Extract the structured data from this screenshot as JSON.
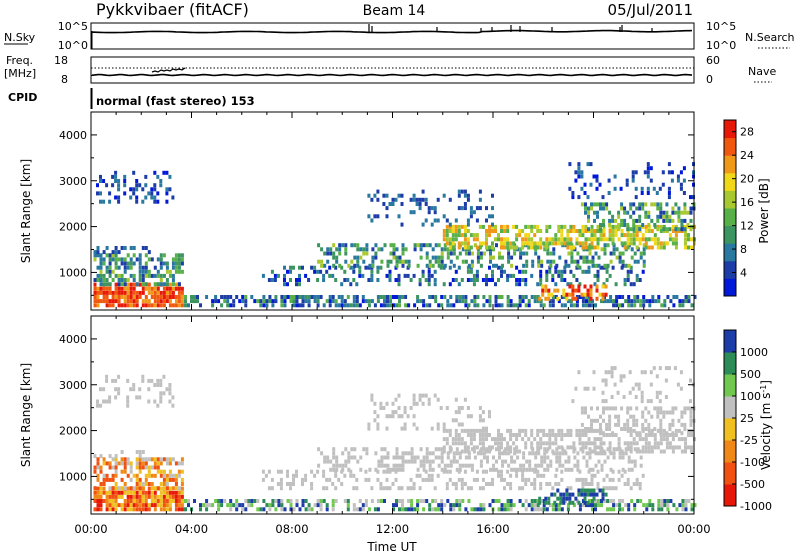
{
  "header": {
    "station": "Pykkvibaer (fitACF)",
    "beam": "Beam 14",
    "date": "05/Jul/2011"
  },
  "noise_panel": {
    "left_label": "N.Sky",
    "right_label": "N.Search",
    "left_ticks": [
      "10^5",
      "10^0"
    ],
    "right_ticks": [
      "10^5",
      "10^0"
    ]
  },
  "freq_panel": {
    "left_label_line1": "Freq.",
    "left_label_line2": "[MHz]",
    "right_label": "Nave",
    "left_ticks": [
      "18",
      "8"
    ],
    "right_ticks": [
      "60",
      "0"
    ]
  },
  "cpid": {
    "label": "CPID",
    "text": "normal (fast stereo) 153"
  },
  "chart_data": [
    {
      "type": "heatmap",
      "name": "Power",
      "ylabel": "Slant Range [km]",
      "y_ticks": [
        1000,
        2000,
        3000,
        4000
      ],
      "ylim": [
        180,
        4500
      ],
      "colorbar_label": "Power [dB]",
      "colorbar_ticks": [
        4,
        8,
        12,
        16,
        20,
        24,
        28
      ],
      "colorbar_range": [
        0,
        30
      ],
      "colorscale": [
        "#0018d8",
        "#1c3ca8",
        "#2878a0",
        "#3c9460",
        "#58b048",
        "#a8c830",
        "#f0d818",
        "#f09818",
        "#f05810",
        "#e81808"
      ]
    },
    {
      "type": "heatmap",
      "name": "Velocity",
      "ylabel": "Slant Range [km]",
      "y_ticks": [
        1000,
        2000,
        3000,
        4000
      ],
      "ylim": [
        180,
        4500
      ],
      "colorbar_label": "Velocity [m s-1]",
      "colorbar_ticks": [
        "1000",
        "500",
        "100",
        "25",
        "-25",
        "-100",
        "-500",
        "-1000"
      ],
      "colorscale": [
        "#e81808",
        "#f05010",
        "#f08818",
        "#f0c020",
        "#c0c0c0",
        "#70c850",
        "#2c8c58",
        "#1c3ca8"
      ],
      "gray_index": 4
    }
  ],
  "time_axis": {
    "xlabel": "Time UT",
    "tick_labels": [
      "00:00",
      "04:00",
      "08:00",
      "12:00",
      "16:00",
      "20:00",
      "00:00"
    ],
    "xlim_hours": [
      0,
      24
    ]
  }
}
